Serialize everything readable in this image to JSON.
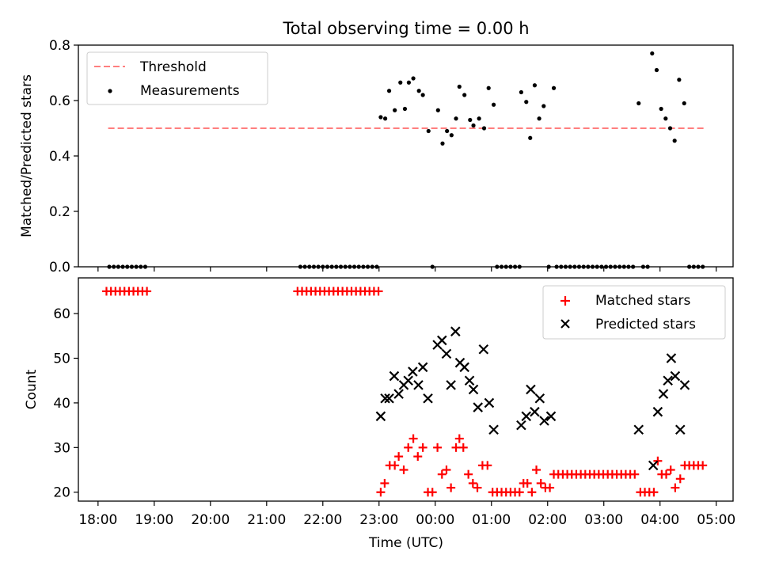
{
  "chart_data": [
    {
      "type": "scatter",
      "title": "Total observing time = 0.00 h",
      "ylabel": "Matched/Predicted stars",
      "ylim": [
        0,
        0.8
      ],
      "yticks": [
        0.0,
        0.2,
        0.4,
        0.6,
        0.8
      ],
      "ytick_labels": [
        "0.0",
        "0.2",
        "0.4",
        "0.6",
        "0.8"
      ],
      "x_unit": "hours since 18:00 UTC",
      "xlim": [
        -0.35,
        11.3
      ],
      "threshold": {
        "name": "Threshold",
        "y": 0.5,
        "x_start": 0.18,
        "x_end": 10.8,
        "color": "#ff7f7f",
        "style": "dashed"
      },
      "legend": {
        "position": "top-left",
        "entries": [
          "Threshold",
          "Measurements"
        ]
      },
      "series": [
        {
          "name": "Measurements",
          "color": "#000000",
          "marker": "dot",
          "points": [
            [
              0.2,
              0
            ],
            [
              0.28,
              0
            ],
            [
              0.36,
              0
            ],
            [
              0.44,
              0
            ],
            [
              0.52,
              0
            ],
            [
              0.6,
              0
            ],
            [
              0.68,
              0
            ],
            [
              0.76,
              0
            ],
            [
              0.84,
              0
            ],
            [
              3.6,
              0
            ],
            [
              3.68,
              0
            ],
            [
              3.76,
              0
            ],
            [
              3.84,
              0
            ],
            [
              3.92,
              0
            ],
            [
              4.0,
              0
            ],
            [
              4.08,
              0
            ],
            [
              4.16,
              0
            ],
            [
              4.24,
              0
            ],
            [
              4.32,
              0
            ],
            [
              4.4,
              0
            ],
            [
              4.48,
              0
            ],
            [
              4.56,
              0
            ],
            [
              4.64,
              0
            ],
            [
              4.72,
              0
            ],
            [
              4.8,
              0
            ],
            [
              4.88,
              0
            ],
            [
              4.96,
              0
            ],
            [
              5.03,
              0.54
            ],
            [
              5.11,
              0.535
            ],
            [
              5.18,
              0.635
            ],
            [
              5.28,
              0.565
            ],
            [
              5.38,
              0.665
            ],
            [
              5.46,
              0.57
            ],
            [
              5.53,
              0.665
            ],
            [
              5.61,
              0.68
            ],
            [
              5.71,
              0.635
            ],
            [
              5.78,
              0.62
            ],
            [
              5.88,
              0.49
            ],
            [
              5.95,
              0
            ],
            [
              6.05,
              0.565
            ],
            [
              6.13,
              0.445
            ],
            [
              6.21,
              0.49
            ],
            [
              6.29,
              0.475
            ],
            [
              6.37,
              0.535
            ],
            [
              6.43,
              0.65
            ],
            [
              6.52,
              0.62
            ],
            [
              6.62,
              0.53
            ],
            [
              6.68,
              0.51
            ],
            [
              6.78,
              0.535
            ],
            [
              6.87,
              0.5
            ],
            [
              6.95,
              0.645
            ],
            [
              7.04,
              0.585
            ],
            [
              7.1,
              0
            ],
            [
              7.18,
              0
            ],
            [
              7.26,
              0
            ],
            [
              7.34,
              0
            ],
            [
              7.42,
              0
            ],
            [
              7.5,
              0
            ],
            [
              7.53,
              0.63
            ],
            [
              7.62,
              0.595
            ],
            [
              7.69,
              0.465
            ],
            [
              7.77,
              0.655
            ],
            [
              7.85,
              0.535
            ],
            [
              7.93,
              0.58
            ],
            [
              8.02,
              0
            ],
            [
              8.11,
              0.645
            ],
            [
              8.16,
              0
            ],
            [
              8.24,
              0
            ],
            [
              8.32,
              0
            ],
            [
              8.4,
              0
            ],
            [
              8.48,
              0
            ],
            [
              8.56,
              0
            ],
            [
              8.64,
              0
            ],
            [
              8.72,
              0
            ],
            [
              8.8,
              0
            ],
            [
              8.88,
              0
            ],
            [
              8.96,
              0
            ],
            [
              9.04,
              0
            ],
            [
              9.12,
              0
            ],
            [
              9.2,
              0
            ],
            [
              9.28,
              0
            ],
            [
              9.36,
              0
            ],
            [
              9.44,
              0
            ],
            [
              9.52,
              0
            ],
            [
              9.62,
              0.59
            ],
            [
              9.7,
              0
            ],
            [
              9.78,
              0
            ],
            [
              9.86,
              0.77
            ],
            [
              9.94,
              0.71
            ],
            [
              10.02,
              0.57
            ],
            [
              10.1,
              0.535
            ],
            [
              10.18,
              0.5
            ],
            [
              10.26,
              0.455
            ],
            [
              10.34,
              0.675
            ],
            [
              10.43,
              0.59
            ],
            [
              10.52,
              0
            ],
            [
              10.6,
              0
            ],
            [
              10.68,
              0
            ],
            [
              10.76,
              0
            ]
          ]
        }
      ]
    },
    {
      "type": "scatter",
      "xlabel": "Time (UTC)",
      "ylabel": "Count",
      "ylim": [
        18,
        68
      ],
      "yticks": [
        20,
        30,
        40,
        50,
        60
      ],
      "ytick_labels": [
        "20",
        "30",
        "40",
        "50",
        "60"
      ],
      "x_unit": "hours since 18:00 UTC",
      "xlim": [
        -0.35,
        11.3
      ],
      "xticks": [
        0,
        1,
        2,
        3,
        4,
        5,
        6,
        7,
        8,
        9,
        10,
        11
      ],
      "xtick_labels": [
        "18:00",
        "19:00",
        "20:00",
        "21:00",
        "22:00",
        "23:00",
        "00:00",
        "01:00",
        "02:00",
        "03:00",
        "04:00",
        "05:00"
      ],
      "legend": {
        "position": "top-right",
        "entries": [
          "Matched stars",
          "Predicted stars"
        ]
      },
      "series": [
        {
          "name": "Matched stars",
          "color": "#ff0000",
          "marker": "plus",
          "points": [
            [
              0.15,
              65
            ],
            [
              0.23,
              65
            ],
            [
              0.31,
              65
            ],
            [
              0.39,
              65
            ],
            [
              0.47,
              65
            ],
            [
              0.55,
              65
            ],
            [
              0.63,
              65
            ],
            [
              0.71,
              65
            ],
            [
              0.79,
              65
            ],
            [
              0.87,
              65
            ],
            [
              3.55,
              65
            ],
            [
              3.63,
              65
            ],
            [
              3.71,
              65
            ],
            [
              3.79,
              65
            ],
            [
              3.87,
              65
            ],
            [
              3.95,
              65
            ],
            [
              4.03,
              65
            ],
            [
              4.11,
              65
            ],
            [
              4.19,
              65
            ],
            [
              4.27,
              65
            ],
            [
              4.35,
              65
            ],
            [
              4.43,
              65
            ],
            [
              4.51,
              65
            ],
            [
              4.59,
              65
            ],
            [
              4.67,
              65
            ],
            [
              4.75,
              65
            ],
            [
              4.83,
              65
            ],
            [
              4.91,
              65
            ],
            [
              4.99,
              65
            ],
            [
              5.03,
              20
            ],
            [
              5.1,
              22
            ],
            [
              5.19,
              26
            ],
            [
              5.28,
              26
            ],
            [
              5.35,
              28
            ],
            [
              5.44,
              25
            ],
            [
              5.52,
              30
            ],
            [
              5.61,
              32
            ],
            [
              5.69,
              28
            ],
            [
              5.78,
              30
            ],
            [
              5.87,
              20
            ],
            [
              5.95,
              20
            ],
            [
              6.04,
              30
            ],
            [
              6.12,
              24
            ],
            [
              6.2,
              25
            ],
            [
              6.28,
              21
            ],
            [
              6.37,
              30
            ],
            [
              6.43,
              32
            ],
            [
              6.5,
              30
            ],
            [
              6.59,
              24
            ],
            [
              6.67,
              22
            ],
            [
              6.75,
              21
            ],
            [
              6.84,
              26
            ],
            [
              6.93,
              26
            ],
            [
              7.02,
              20
            ],
            [
              7.1,
              20
            ],
            [
              7.18,
              20
            ],
            [
              7.26,
              20
            ],
            [
              7.34,
              20
            ],
            [
              7.42,
              20
            ],
            [
              7.5,
              20
            ],
            [
              7.57,
              22
            ],
            [
              7.64,
              22
            ],
            [
              7.72,
              20
            ],
            [
              7.8,
              25
            ],
            [
              7.88,
              22
            ],
            [
              7.96,
              21
            ],
            [
              8.04,
              21
            ],
            [
              8.11,
              24
            ],
            [
              8.19,
              24
            ],
            [
              8.27,
              24
            ],
            [
              8.35,
              24
            ],
            [
              8.43,
              24
            ],
            [
              8.51,
              24
            ],
            [
              8.59,
              24
            ],
            [
              8.67,
              24
            ],
            [
              8.75,
              24
            ],
            [
              8.83,
              24
            ],
            [
              8.91,
              24
            ],
            [
              8.99,
              24
            ],
            [
              9.07,
              24
            ],
            [
              9.15,
              24
            ],
            [
              9.23,
              24
            ],
            [
              9.31,
              24
            ],
            [
              9.39,
              24
            ],
            [
              9.47,
              24
            ],
            [
              9.55,
              24
            ],
            [
              9.65,
              20
            ],
            [
              9.73,
              20
            ],
            [
              9.81,
              20
            ],
            [
              9.89,
              20
            ],
            [
              9.96,
              27
            ],
            [
              10.03,
              24
            ],
            [
              10.11,
              24
            ],
            [
              10.19,
              25
            ],
            [
              10.27,
              21
            ],
            [
              10.36,
              23
            ],
            [
              10.44,
              26
            ],
            [
              10.52,
              26
            ],
            [
              10.6,
              26
            ],
            [
              10.68,
              26
            ],
            [
              10.76,
              26
            ]
          ]
        },
        {
          "name": "Predicted stars",
          "color": "#000000",
          "marker": "x",
          "points": [
            [
              5.03,
              37
            ],
            [
              5.11,
              41
            ],
            [
              5.18,
              41
            ],
            [
              5.27,
              46
            ],
            [
              5.35,
              42
            ],
            [
              5.44,
              44
            ],
            [
              5.52,
              45
            ],
            [
              5.6,
              47
            ],
            [
              5.7,
              44
            ],
            [
              5.78,
              48
            ],
            [
              5.87,
              41
            ],
            [
              6.04,
              53
            ],
            [
              6.12,
              54
            ],
            [
              6.2,
              51
            ],
            [
              6.28,
              44
            ],
            [
              6.36,
              56
            ],
            [
              6.44,
              49
            ],
            [
              6.52,
              48
            ],
            [
              6.61,
              45
            ],
            [
              6.68,
              43
            ],
            [
              6.76,
              39
            ],
            [
              6.86,
              52
            ],
            [
              6.96,
              40
            ],
            [
              7.04,
              34
            ],
            [
              7.53,
              35
            ],
            [
              7.62,
              37
            ],
            [
              7.7,
              43
            ],
            [
              7.77,
              38
            ],
            [
              7.86,
              41
            ],
            [
              7.94,
              36
            ],
            [
              8.06,
              37
            ],
            [
              9.62,
              34
            ],
            [
              9.88,
              26
            ],
            [
              9.96,
              38
            ],
            [
              10.06,
              42
            ],
            [
              10.14,
              45
            ],
            [
              10.2,
              50
            ],
            [
              10.27,
              46
            ],
            [
              10.36,
              34
            ],
            [
              10.44,
              44
            ]
          ]
        }
      ]
    }
  ]
}
